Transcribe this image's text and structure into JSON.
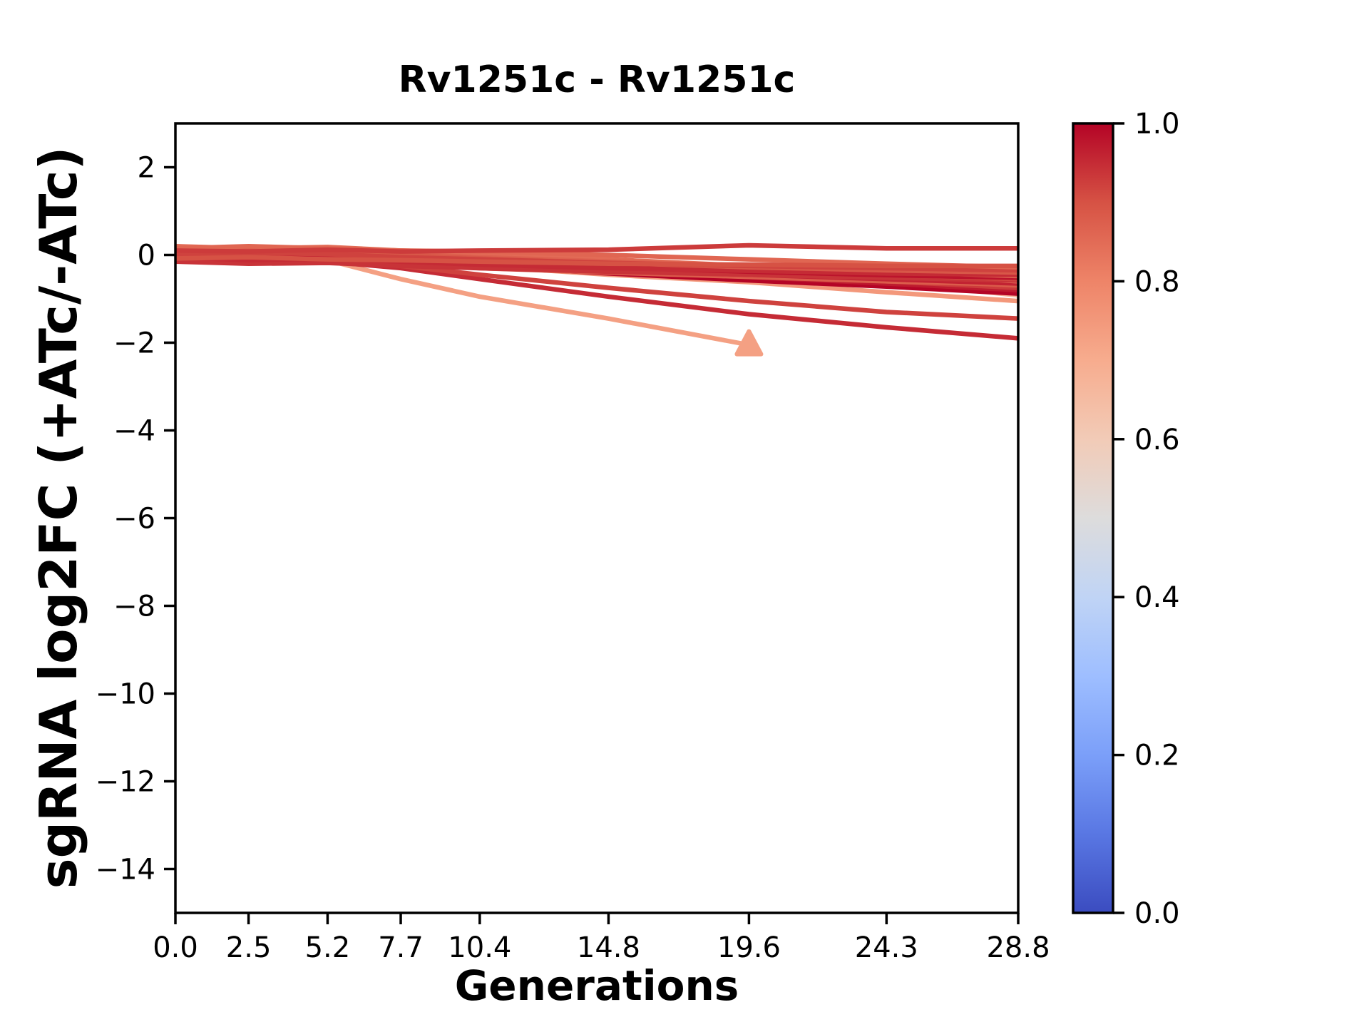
{
  "chart_data": {
    "type": "line",
    "title": "Rv1251c - Rv1251c",
    "xlabel": "Generations",
    "ylabel": "sgRNA log2FC (+ATc/-ATc)",
    "xlim": [
      0,
      28.8
    ],
    "ylim": [
      -15,
      3
    ],
    "grid": false,
    "x": [
      0.0,
      2.5,
      5.2,
      7.7,
      10.4,
      14.8,
      19.6,
      24.3,
      28.8
    ],
    "xtick_labels": [
      "0.0",
      "2.5",
      "5.2",
      "7.7",
      "10.4",
      "14.8",
      "19.6",
      "24.3",
      "28.8"
    ],
    "ytick_values": [
      2,
      0,
      -2,
      -4,
      -6,
      -8,
      -10,
      -12,
      -14
    ],
    "ytick_labels": [
      "2",
      "0",
      "−2",
      "−4",
      "−6",
      "−8",
      "−10",
      "−12",
      "−14"
    ],
    "series": [
      {
        "name": "line-01",
        "colormap_value": 0.73,
        "marker": "triangle-up",
        "y": [
          0.0,
          0.08,
          -0.12,
          -0.55,
          -0.95,
          -1.45,
          -2.05,
          null,
          null
        ]
      },
      {
        "name": "line-02",
        "colormap_value": 0.95,
        "y": [
          0.0,
          -0.08,
          -0.15,
          -0.3,
          -0.55,
          -0.95,
          -1.35,
          -1.65,
          -1.9
        ]
      },
      {
        "name": "line-03",
        "colormap_value": 0.92,
        "y": [
          0.02,
          -0.05,
          -0.12,
          -0.25,
          -0.45,
          -0.75,
          -1.05,
          -1.3,
          -1.45
        ]
      },
      {
        "name": "line-04",
        "colormap_value": 0.75,
        "y": [
          0.1,
          0.12,
          0.08,
          -0.08,
          -0.25,
          -0.45,
          -0.62,
          -0.85,
          -1.05
        ]
      },
      {
        "name": "line-05",
        "colormap_value": 0.68,
        "y": [
          0.05,
          0.18,
          0.15,
          0.1,
          0.02,
          -0.12,
          -0.32,
          -0.62,
          -0.92
        ]
      },
      {
        "name": "line-06",
        "colormap_value": 1.0,
        "y": [
          0.0,
          -0.05,
          -0.1,
          -0.15,
          -0.25,
          -0.42,
          -0.58,
          -0.72,
          -0.88
        ]
      },
      {
        "name": "line-07",
        "colormap_value": 0.97,
        "y": [
          -0.05,
          -0.1,
          -0.08,
          -0.16,
          -0.22,
          -0.35,
          -0.5,
          -0.65,
          -0.8
        ]
      },
      {
        "name": "line-08",
        "colormap_value": 0.93,
        "y": [
          0.1,
          0.05,
          0.0,
          -0.1,
          -0.2,
          -0.3,
          -0.45,
          -0.6,
          -0.75
        ]
      },
      {
        "name": "line-09",
        "colormap_value": 0.9,
        "y": [
          0.15,
          0.1,
          0.12,
          0.05,
          -0.05,
          -0.2,
          -0.35,
          -0.55,
          -0.7
        ]
      },
      {
        "name": "line-10",
        "colormap_value": 0.88,
        "y": [
          -0.1,
          -0.15,
          -0.1,
          -0.2,
          -0.3,
          -0.4,
          -0.5,
          -0.6,
          -0.68
        ]
      },
      {
        "name": "line-11",
        "colormap_value": 0.96,
        "y": [
          0.0,
          0.02,
          -0.05,
          -0.12,
          -0.22,
          -0.35,
          -0.45,
          -0.55,
          -0.65
        ]
      },
      {
        "name": "line-12",
        "colormap_value": 0.85,
        "y": [
          0.2,
          0.15,
          0.18,
          0.1,
          0.05,
          -0.1,
          -0.25,
          -0.42,
          -0.6
        ]
      },
      {
        "name": "line-13",
        "colormap_value": 0.94,
        "y": [
          -0.15,
          -0.2,
          -0.18,
          -0.25,
          -0.3,
          -0.38,
          -0.45,
          -0.52,
          -0.58
        ]
      },
      {
        "name": "line-14",
        "colormap_value": 0.91,
        "y": [
          0.05,
          0.0,
          0.05,
          -0.05,
          -0.12,
          -0.22,
          -0.32,
          -0.45,
          -0.55
        ]
      },
      {
        "name": "line-15",
        "colormap_value": 0.98,
        "y": [
          0.0,
          -0.06,
          -0.02,
          -0.1,
          -0.18,
          -0.28,
          -0.38,
          -0.46,
          -0.52
        ]
      },
      {
        "name": "line-16",
        "colormap_value": 0.87,
        "y": [
          0.12,
          0.08,
          0.1,
          0.02,
          -0.05,
          -0.15,
          -0.25,
          -0.38,
          -0.48
        ]
      },
      {
        "name": "line-17",
        "colormap_value": 0.95,
        "y": [
          -0.05,
          -0.12,
          -0.08,
          -0.15,
          -0.22,
          -0.3,
          -0.36,
          -0.42,
          -0.45
        ]
      },
      {
        "name": "line-18",
        "colormap_value": 0.89,
        "y": [
          0.08,
          0.12,
          0.06,
          0.0,
          -0.08,
          -0.18,
          -0.28,
          -0.35,
          -0.4
        ]
      },
      {
        "name": "line-19",
        "colormap_value": 0.92,
        "y": [
          0.0,
          0.05,
          0.02,
          -0.05,
          -0.1,
          -0.18,
          -0.25,
          -0.3,
          -0.35
        ]
      },
      {
        "name": "line-20",
        "colormap_value": 0.86,
        "y": [
          0.15,
          0.2,
          0.15,
          0.1,
          0.08,
          0.0,
          -0.1,
          -0.2,
          -0.28
        ]
      },
      {
        "name": "line-21",
        "colormap_value": 0.9,
        "y": [
          -0.08,
          -0.05,
          -0.1,
          -0.12,
          -0.15,
          -0.2,
          -0.22,
          -0.25,
          -0.25
        ]
      },
      {
        "name": "line-22",
        "colormap_value": 0.93,
        "y": [
          0.1,
          0.08,
          0.12,
          0.08,
          0.1,
          0.12,
          0.22,
          0.15,
          0.15
        ]
      }
    ],
    "colorbar": {
      "colormap": "coolwarm",
      "min": 0.0,
      "max": 1.0,
      "tick_values": [
        0.0,
        0.2,
        0.4,
        0.6,
        0.8,
        1.0
      ],
      "tick_labels": [
        "0.0",
        "0.2",
        "0.4",
        "0.6",
        "0.8",
        "1.0"
      ],
      "stops": [
        {
          "v": 0.0,
          "hex": "#3b4cc0"
        },
        {
          "v": 0.1,
          "hex": "#5977e3"
        },
        {
          "v": 0.2,
          "hex": "#7b9ff9"
        },
        {
          "v": 0.3,
          "hex": "#9ebeff"
        },
        {
          "v": 0.4,
          "hex": "#c0d4f5"
        },
        {
          "v": 0.5,
          "hex": "#dddcdc"
        },
        {
          "v": 0.6,
          "hex": "#f2cbb7"
        },
        {
          "v": 0.7,
          "hex": "#f7ac8e"
        },
        {
          "v": 0.8,
          "hex": "#ee8468"
        },
        {
          "v": 0.9,
          "hex": "#d65244"
        },
        {
          "v": 1.0,
          "hex": "#b40426"
        }
      ]
    },
    "colors": {
      "axis": "#000000",
      "background": "#ffffff"
    }
  }
}
